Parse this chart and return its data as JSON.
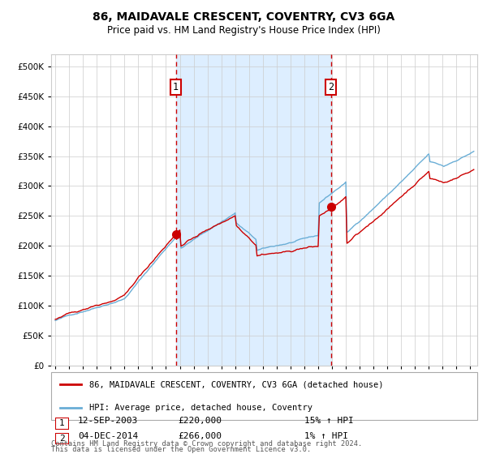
{
  "title": "86, MAIDAVALE CRESCENT, COVENTRY, CV3 6GA",
  "subtitle": "Price paid vs. HM Land Registry's House Price Index (HPI)",
  "sale1_date": "12-SEP-2003",
  "sale1_price": 220000,
  "sale1_year": 2003.71,
  "sale2_date": "04-DEC-2014",
  "sale2_price": 266000,
  "sale2_year": 2014.92,
  "legend_property": "86, MAIDAVALE CRESCENT, COVENTRY, CV3 6GA (detached house)",
  "legend_hpi": "HPI: Average price, detached house, Coventry",
  "footnote1": "Contains HM Land Registry data © Crown copyright and database right 2024.",
  "footnote2": "This data is licensed under the Open Government Licence v3.0.",
  "sale1_hpi_pct": "15% ↑ HPI",
  "sale2_hpi_pct": "1% ↑ HPI",
  "hpi_color": "#6aaed6",
  "prop_color": "#cc0000",
  "background_color": "#ffffff",
  "shade_color": "#ddeeff",
  "grid_color": "#cccccc"
}
